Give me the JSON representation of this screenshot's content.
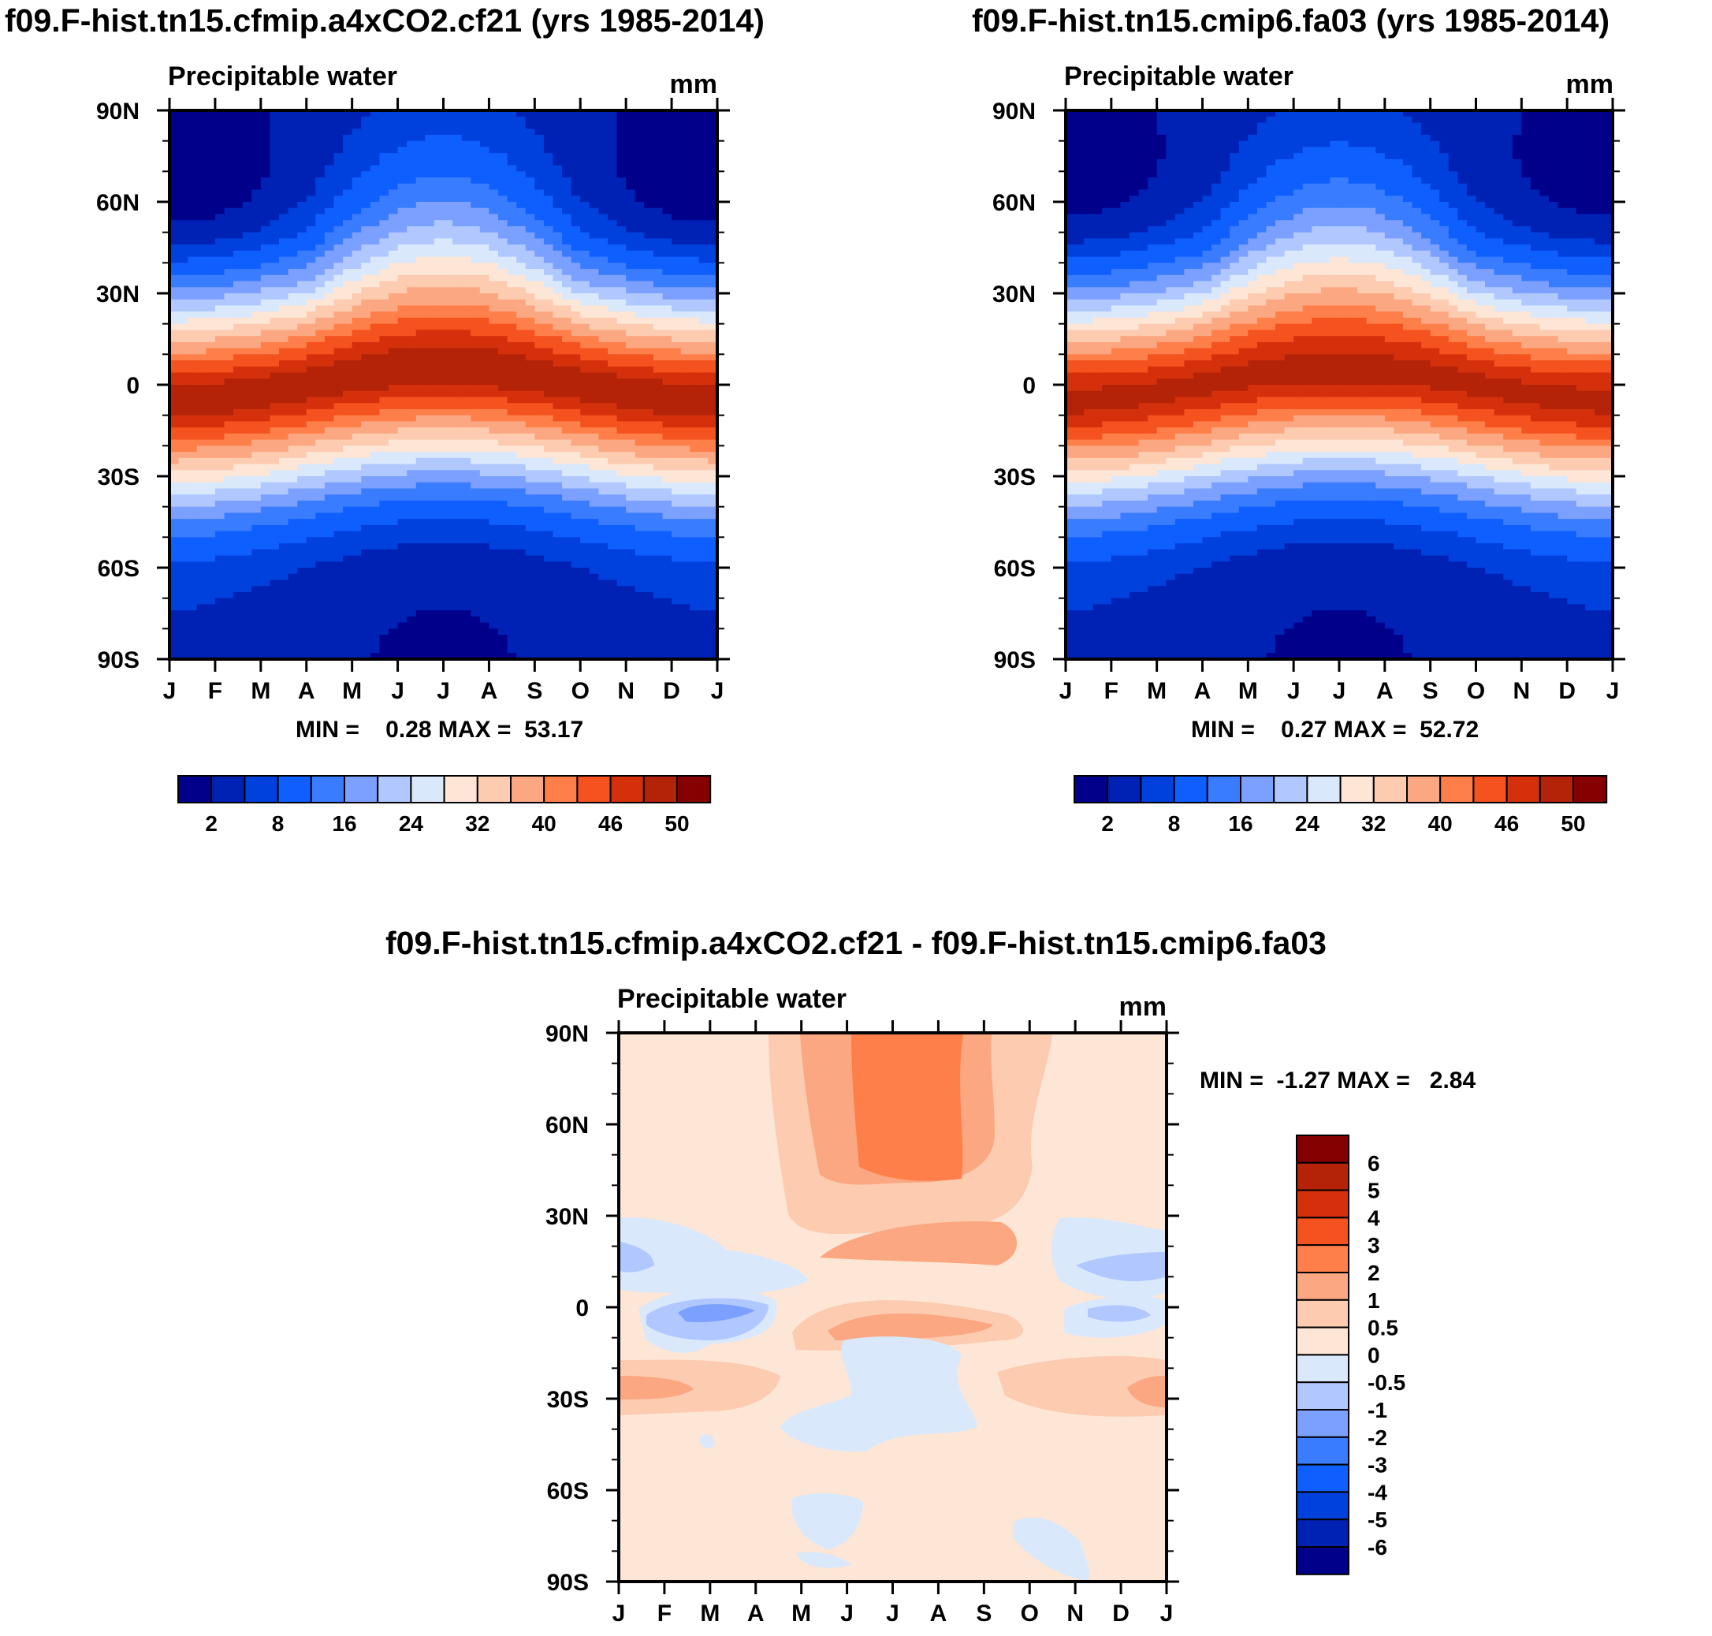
{
  "chart_data": [
    {
      "type": "heatmap",
      "panel": "left",
      "title": "f09.F-hist.tn15.cfmip.a4xCO2.cf21 (yrs 1985-2014)",
      "subtitle": "Precipitable water",
      "units": "mm",
      "stats_text": "MIN =    0.28 MAX =  53.17",
      "min": 0.28,
      "max": 53.17,
      "x_labels": [
        "J",
        "F",
        "M",
        "A",
        "M",
        "J",
        "J",
        "A",
        "S",
        "O",
        "N",
        "D",
        "J"
      ],
      "y_labels": [
        "90N",
        "60N",
        "30N",
        "0",
        "30S",
        "60S",
        "90S"
      ],
      "ylim": [
        -90,
        90
      ],
      "colorbar": {
        "colors": [
          "#00008b",
          "#0022b4",
          "#0040dd",
          "#0f5fff",
          "#3a7cff",
          "#7ba0ff",
          "#b0c8ff",
          "#dae8fc",
          "#fde6d6",
          "#fccbb0",
          "#fba882",
          "#ff7f4a",
          "#f4521e",
          "#d5300c",
          "#b42308",
          "#850000"
        ],
        "tick_labels": [
          "2",
          "8",
          "16",
          "24",
          "32",
          "40",
          "46",
          "50"
        ]
      },
      "field_model": {
        "eq_peak": 49,
        "polar": 3,
        "seasonal_shift_deg": 5,
        "nh_summer_boost": 6
      }
    },
    {
      "type": "heatmap",
      "panel": "right",
      "title": "f09.F-hist.tn15.cmip6.fa03 (yrs 1985-2014)",
      "subtitle": "Precipitable water",
      "units": "mm",
      "stats_text": "MIN =    0.27 MAX =  52.72",
      "min": 0.27,
      "max": 52.72,
      "x_labels": [
        "J",
        "F",
        "M",
        "A",
        "M",
        "J",
        "J",
        "A",
        "S",
        "O",
        "N",
        "D",
        "J"
      ],
      "y_labels": [
        "90N",
        "60N",
        "30N",
        "0",
        "30S",
        "60S",
        "90S"
      ],
      "ylim": [
        -90,
        90
      ],
      "colorbar": {
        "colors": [
          "#00008b",
          "#0022b4",
          "#0040dd",
          "#0f5fff",
          "#3a7cff",
          "#7ba0ff",
          "#b0c8ff",
          "#dae8fc",
          "#fde6d6",
          "#fccbb0",
          "#fba882",
          "#ff7f4a",
          "#f4521e",
          "#d5300c",
          "#b42308",
          "#850000"
        ],
        "tick_labels": [
          "2",
          "8",
          "16",
          "24",
          "32",
          "40",
          "46",
          "50"
        ]
      },
      "field_model": {
        "eq_peak": 48.5,
        "polar": 3,
        "seasonal_shift_deg": 5,
        "nh_summer_boost": 5
      }
    },
    {
      "type": "heatmap",
      "panel": "difference",
      "title": "f09.F-hist.tn15.cfmip.a4xCO2.cf21 - f09.F-hist.tn15.cmip6.fa03",
      "subtitle": "Precipitable water",
      "units": "mm",
      "stats_text": "MIN =  -1.27 MAX =   2.84",
      "min": -1.27,
      "max": 2.84,
      "x_labels": [
        "J",
        "F",
        "M",
        "A",
        "M",
        "J",
        "J",
        "A",
        "S",
        "O",
        "N",
        "D",
        "J"
      ],
      "y_labels": [
        "90N",
        "60N",
        "30N",
        "0",
        "30S",
        "60S",
        "90S"
      ],
      "ylim": [
        -90,
        90
      ],
      "colorbar": {
        "colors": [
          "#00008b",
          "#0022b4",
          "#0040dd",
          "#0f5fff",
          "#3a7cff",
          "#7ba0ff",
          "#b0c8ff",
          "#dae8fc",
          "#fde6d6",
          "#fccbb0",
          "#fba882",
          "#ff7f4a",
          "#f4521e",
          "#d5300c",
          "#b42308",
          "#850000"
        ],
        "tick_labels": [
          "6",
          "5",
          "4",
          "3",
          "2",
          "1",
          "0.5",
          "0",
          "-0.5",
          "-1",
          "-2",
          "-3",
          "-4",
          "-5",
          "-6"
        ]
      }
    }
  ]
}
